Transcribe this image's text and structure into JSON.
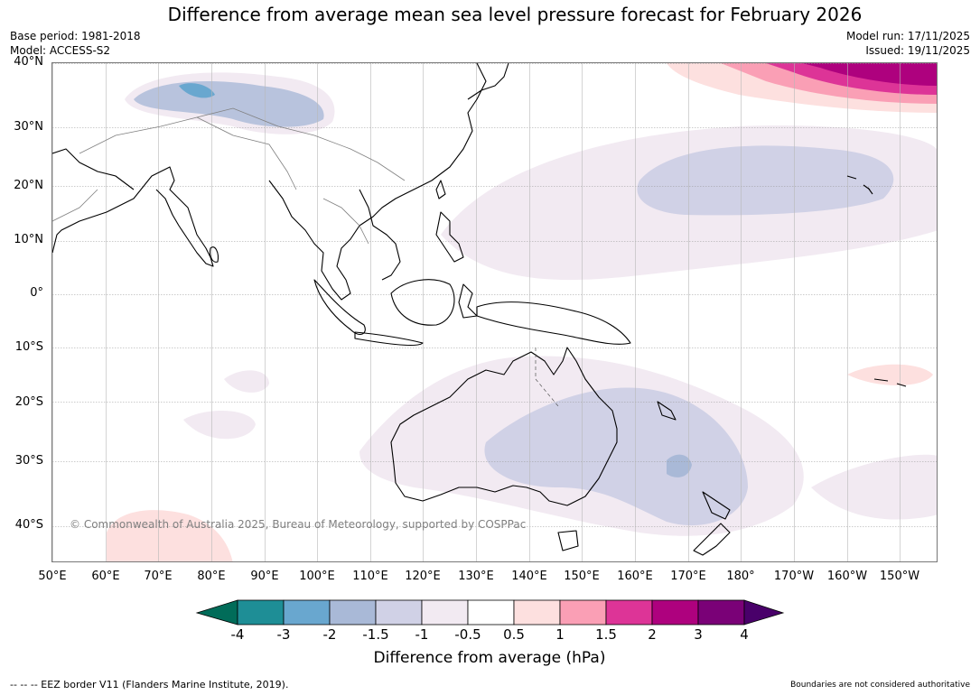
{
  "header": {
    "title": "Difference from average mean sea level pressure forecast for February 2026",
    "base_period": "Base period: 1981-2018",
    "model": "Model: ACCESS-S2",
    "model_run": "Model run: 17/11/2025",
    "issued": "Issued: 19/11/2025"
  },
  "map": {
    "lat_labels": [
      "40°N",
      "30°N",
      "20°N",
      "10°N",
      "0°",
      "10°S",
      "20°S",
      "30°S",
      "40°S"
    ],
    "lon_labels": [
      "50°E",
      "60°E",
      "70°E",
      "80°E",
      "90°E",
      "100°E",
      "110°E",
      "120°E",
      "130°E",
      "140°E",
      "150°E",
      "160°E",
      "170°E",
      "180°",
      "170°W",
      "160°W",
      "150°W"
    ],
    "copyright": "© Commonwealth of Australia 2025, Bureau of Meteorology, supported by COSPPac",
    "anomaly_regions": [
      {
        "area": "Western Himalaya / Tibetan Plateau",
        "category": "-2 to -1.5 hPa (locally -3)"
      },
      {
        "area": "North Pacific near Hawaii",
        "category": "-1.5 to -1 hPa"
      },
      {
        "area": "Australia and Tasman Sea",
        "category": "-1.5 to -1 hPa"
      },
      {
        "area": "Far North Pacific (40°N, 160°E–150°W)",
        "category": "0.5 to 3 hPa"
      },
      {
        "area": "South Pacific near 15°S 160°W",
        "category": "0.5 to 1 hPa"
      },
      {
        "area": "Southern Indian Ocean near 40°S 70°E",
        "category": "0.5 to 1 hPa"
      }
    ]
  },
  "colorbar": {
    "labels": [
      "-4",
      "-3",
      "-2",
      "-1.5",
      "-1",
      "-0.5",
      "0.5",
      "1",
      "1.5",
      "2",
      "3",
      "4"
    ],
    "colors": [
      "#1e8e96",
      "#69a7cf",
      "#a9b9d7",
      "#d0d1e6",
      "#f2eaf2",
      "#ffffff",
      "#fde0df",
      "#fa9fb5",
      "#dd3497",
      "#ae017e",
      "#7a0177"
    ],
    "under_color": "#016c59",
    "over_color": "#49006a",
    "title": "Difference from average (hPa)"
  },
  "footer": {
    "eez": "--  --  -- EEZ border V11 (Flanders Marine Institute, 2019).",
    "disclaimer": "Boundaries are not considered authoritative"
  }
}
